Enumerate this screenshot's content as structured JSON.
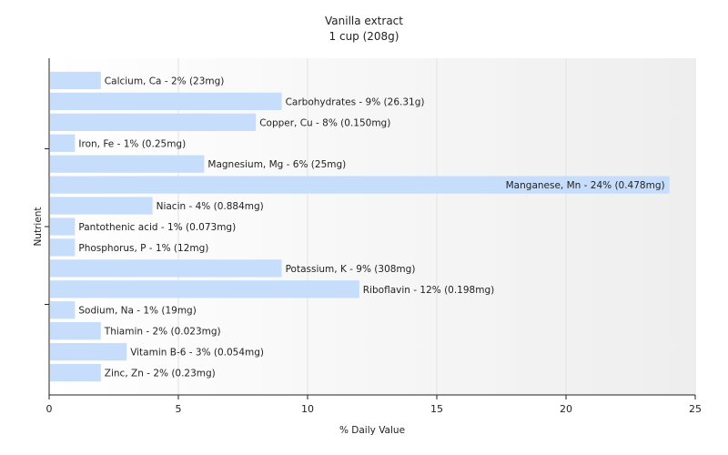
{
  "chart_data": {
    "type": "bar",
    "orientation": "horizontal",
    "title": "Vanilla extract",
    "subtitle": "1 cup (208g)",
    "xlabel": "% Daily Value",
    "ylabel": "Nutrient",
    "xlim": [
      0,
      25
    ],
    "xticks": [
      0,
      5,
      10,
      15,
      20,
      25
    ],
    "grid": true,
    "bar_color": "#c6ddfb",
    "categories": [
      "Calcium, Ca",
      "Carbohydrates",
      "Copper, Cu",
      "Iron, Fe",
      "Magnesium, Mg",
      "Manganese, Mn",
      "Niacin",
      "Pantothenic acid",
      "Phosphorus, P",
      "Potassium, K",
      "Riboflavin",
      "Sodium, Na",
      "Thiamin",
      "Vitamin B-6",
      "Zinc, Zn"
    ],
    "values": [
      2,
      9,
      8,
      1,
      6,
      24,
      4,
      1,
      1,
      9,
      12,
      1,
      2,
      3,
      2
    ],
    "labels": [
      "Calcium, Ca - 2% (23mg)",
      "Carbohydrates - 9% (26.31g)",
      "Copper, Cu - 8% (0.150mg)",
      "Iron, Fe - 1% (0.25mg)",
      "Magnesium, Mg - 6% (25mg)",
      "Manganese, Mn - 24% (0.478mg)",
      "Niacin - 4% (0.884mg)",
      "Pantothenic acid - 1% (0.073mg)",
      "Phosphorus, P - 1% (12mg)",
      "Potassium, K - 9% (308mg)",
      "Riboflavin - 12% (0.198mg)",
      "Sodium, Na - 1% (19mg)",
      "Thiamin - 2% (0.023mg)",
      "Vitamin B-6 - 3% (0.054mg)",
      "Zinc, Zn - 2% (0.23mg)"
    ]
  }
}
